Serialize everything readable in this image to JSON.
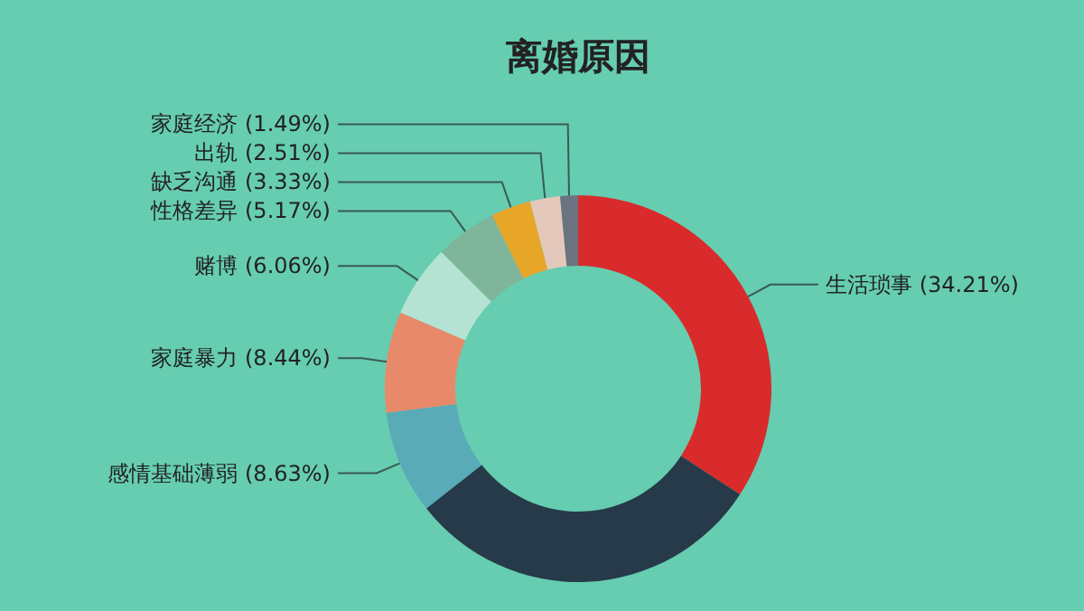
{
  "chart_data": {
    "type": "donut",
    "title": "离婚原因",
    "categories": [
      "生活琐事",
      null,
      "感情基础薄弱",
      "家庭暴力",
      "赌博",
      "性格差异",
      "缺乏沟通",
      "出轨",
      "家庭经济"
    ],
    "values": [
      34.21,
      30.16,
      8.63,
      8.44,
      6.06,
      5.17,
      3.33,
      2.51,
      1.49
    ],
    "value_labels": [
      "(34.21%)",
      null,
      "(8.63%)",
      "(8.44%)",
      "(6.06%)",
      "(5.17%)",
      "(3.33%)",
      "(2.51%)",
      "(1.49%)"
    ],
    "colors": [
      "#d92b2b",
      "#263a4a",
      "#5aabb8",
      "#e8896a",
      "#b5e3d3",
      "#7fb59a",
      "#e8a628",
      "#e4c8bc",
      "#6b7380"
    ]
  }
}
